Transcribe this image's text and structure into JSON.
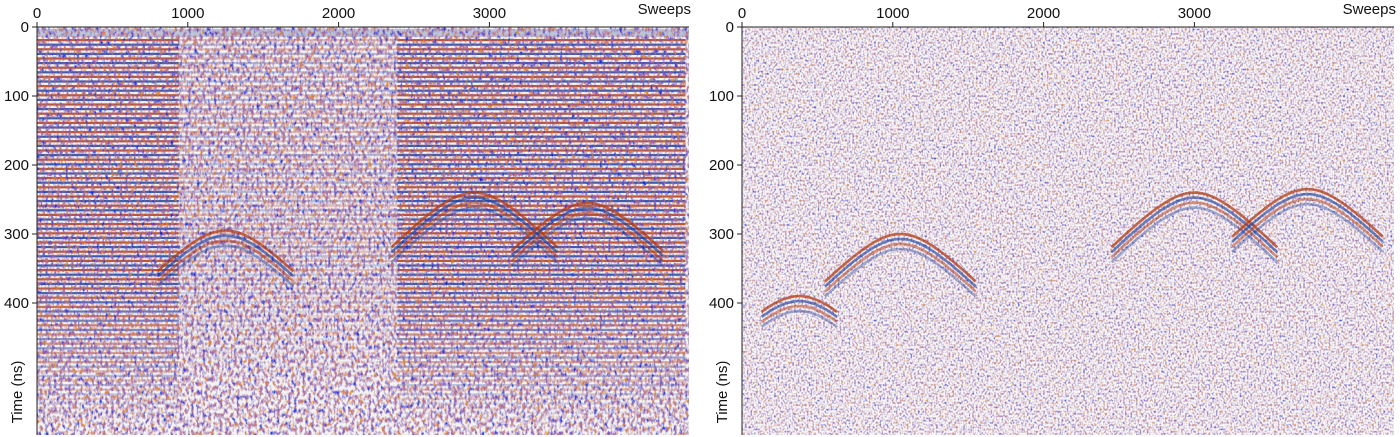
{
  "chart_data": [
    {
      "type": "heatmap",
      "panel": "left",
      "title": "",
      "xlabel": "Sweeps",
      "ylabel": "Time (ns)",
      "x_axis_position": "top",
      "xlim": [
        0,
        4300
      ],
      "ylim": [
        0,
        600
      ],
      "y_inverted": true,
      "xticks": [
        0,
        1000,
        2000,
        3000
      ],
      "yticks": [
        0,
        100,
        200,
        300,
        400
      ],
      "xtick_labels": [
        "0",
        "1000",
        "2000",
        "3000"
      ],
      "ytick_labels": [
        "0",
        "100",
        "200",
        "300",
        "400"
      ],
      "colormap": [
        "#1a3f9e",
        "#ffffff",
        "#b23a12"
      ],
      "grid": false,
      "content": "raw radargram with strong horizontal banding",
      "hyperbolas": [
        {
          "apex_sweep": 1250,
          "apex_time": 295,
          "width_sweeps": 900
        },
        {
          "apex_sweep": 2900,
          "apex_time": 240,
          "width_sweeps": 1100
        },
        {
          "apex_sweep": 3650,
          "apex_time": 255,
          "width_sweeps": 1000
        }
      ]
    },
    {
      "type": "heatmap",
      "panel": "right",
      "title": "",
      "xlabel": "Sweeps",
      "ylabel": "Time (ns)",
      "x_axis_position": "top",
      "xlim": [
        0,
        4300
      ],
      "ylim": [
        0,
        600
      ],
      "y_inverted": true,
      "xticks": [
        0,
        1000,
        2000,
        3000
      ],
      "yticks": [
        0,
        100,
        200,
        300,
        400
      ],
      "xtick_labels": [
        "0",
        "1000",
        "2000",
        "3000"
      ],
      "ytick_labels": [
        "0",
        "100",
        "200",
        "300",
        "400"
      ],
      "colormap": [
        "#1a3f9e",
        "#ffffff",
        "#b23a12"
      ],
      "grid": false,
      "content": "background-removed radargram",
      "hyperbolas": [
        {
          "apex_sweep": 1050,
          "apex_time": 300,
          "width_sweeps": 1000
        },
        {
          "apex_sweep": 3000,
          "apex_time": 240,
          "width_sweeps": 1100
        },
        {
          "apex_sweep": 3750,
          "apex_time": 235,
          "width_sweeps": 1000
        },
        {
          "apex_sweep": 380,
          "apex_time": 390,
          "width_sweeps": 500
        }
      ]
    }
  ]
}
